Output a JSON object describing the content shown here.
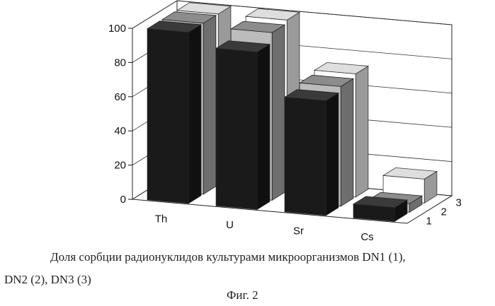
{
  "chart_data": {
    "type": "bar",
    "categories": [
      "Th",
      "U",
      "Sr",
      "Cs"
    ],
    "series": [
      {
        "name": "1",
        "values": [
          100,
          92,
          67,
          8
        ]
      },
      {
        "name": "2",
        "values": [
          100,
          98,
          70,
          5
        ]
      },
      {
        "name": "3",
        "values": [
          100,
          100,
          72,
          14
        ]
      }
    ],
    "y_ticks": [
      "0",
      "20",
      "40",
      "60",
      "80",
      "100"
    ],
    "ylim": [
      0,
      100
    ],
    "title": "",
    "xlabel": "",
    "ylabel": "",
    "grid": true,
    "depth_axis_labels": [
      "1",
      "2",
      "3"
    ],
    "colors": {
      "series_1": "#1a1a1a",
      "series_2": "#bcbcbc",
      "series_3": "#ffffff"
    }
  },
  "caption": {
    "line1": "Доля сорбции радионуклидов культурами микроорганизмов DN1 (1),",
    "line2": "DN2 (2), DN3 (3)",
    "figure": "Фиг. 2"
  }
}
